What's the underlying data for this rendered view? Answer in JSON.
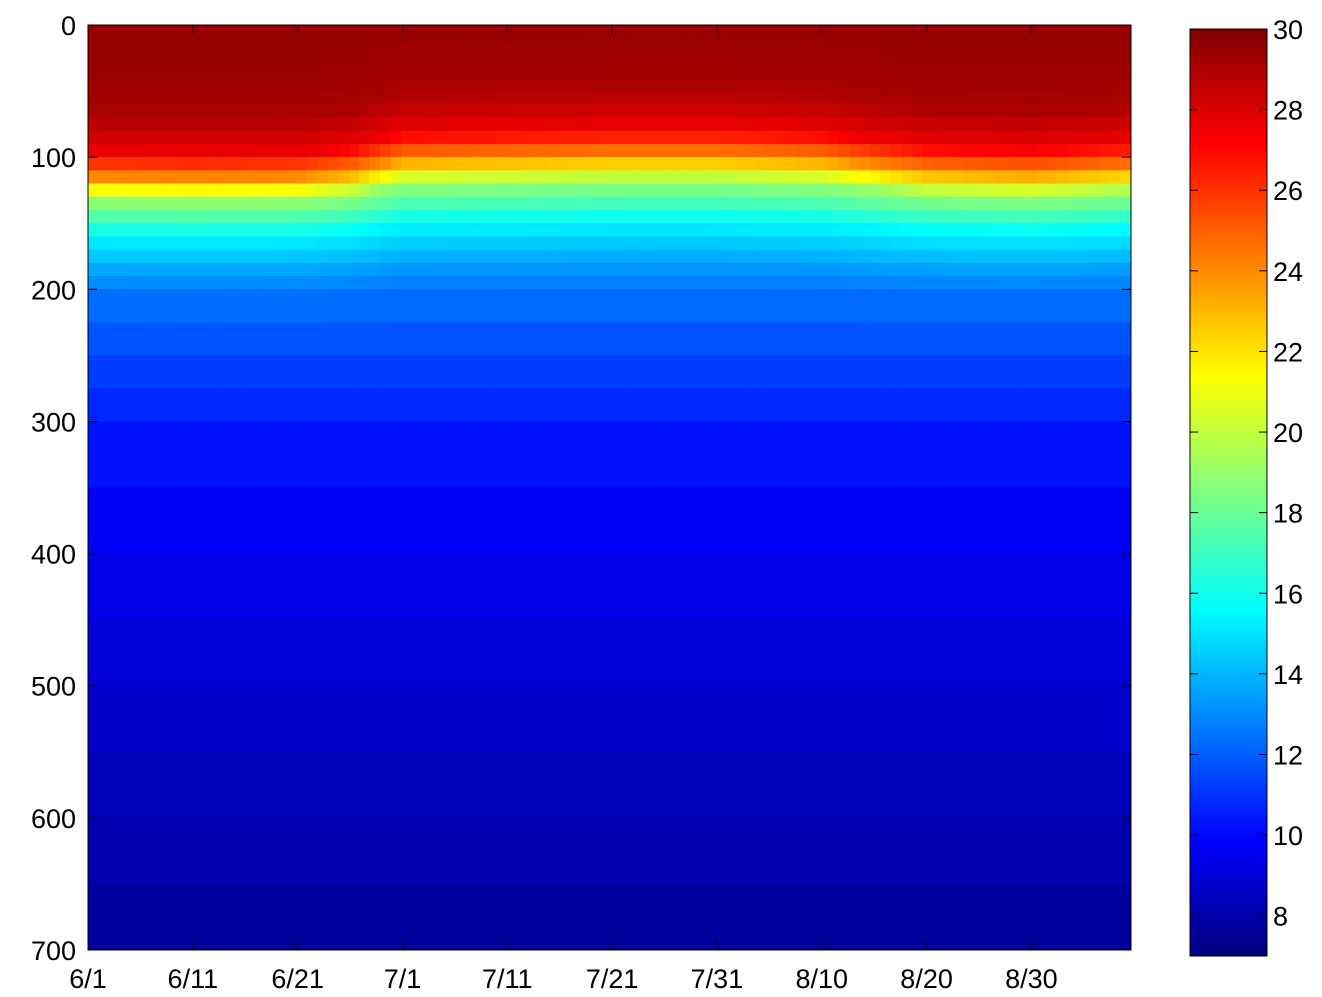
{
  "chart_data": {
    "type": "heatmap",
    "title": "",
    "xlabel": "",
    "ylabel": "",
    "x_ticks": [
      "6/1",
      "6/11",
      "6/21",
      "7/1",
      "7/11",
      "7/21",
      "7/31",
      "8/10",
      "8/20",
      "8/30"
    ],
    "x_tick_days": [
      0,
      10,
      20,
      30,
      40,
      50,
      60,
      70,
      80,
      90
    ],
    "x_range_days": [
      0,
      99.5
    ],
    "y_ticks": [
      0,
      100,
      200,
      300,
      400,
      500,
      600,
      700
    ],
    "ylim": [
      0,
      700
    ],
    "y_reversed": true,
    "colormap": "jet",
    "colorbar": {
      "ticks": [
        8,
        10,
        12,
        14,
        16,
        18,
        20,
        22,
        24,
        26,
        28,
        30
      ],
      "range": [
        7,
        30
      ]
    },
    "profile": {
      "depths": [
        0,
        50,
        80,
        100,
        120,
        150,
        180,
        200,
        250,
        300,
        400,
        500,
        600,
        700
      ],
      "values": [
        29.5,
        29,
        27.5,
        24,
        19,
        15.5,
        13.5,
        12.5,
        11.5,
        10.5,
        9.5,
        8.8,
        8.2,
        7.5
      ]
    },
    "isotherm_22_depth": {
      "days": [
        0,
        10,
        20,
        25,
        30,
        40,
        50,
        60,
        70,
        75,
        80,
        90,
        99
      ],
      "depths": [
        128,
        130,
        128,
        120,
        102,
        100,
        98,
        98,
        102,
        110,
        118,
        122,
        115
      ]
    }
  }
}
